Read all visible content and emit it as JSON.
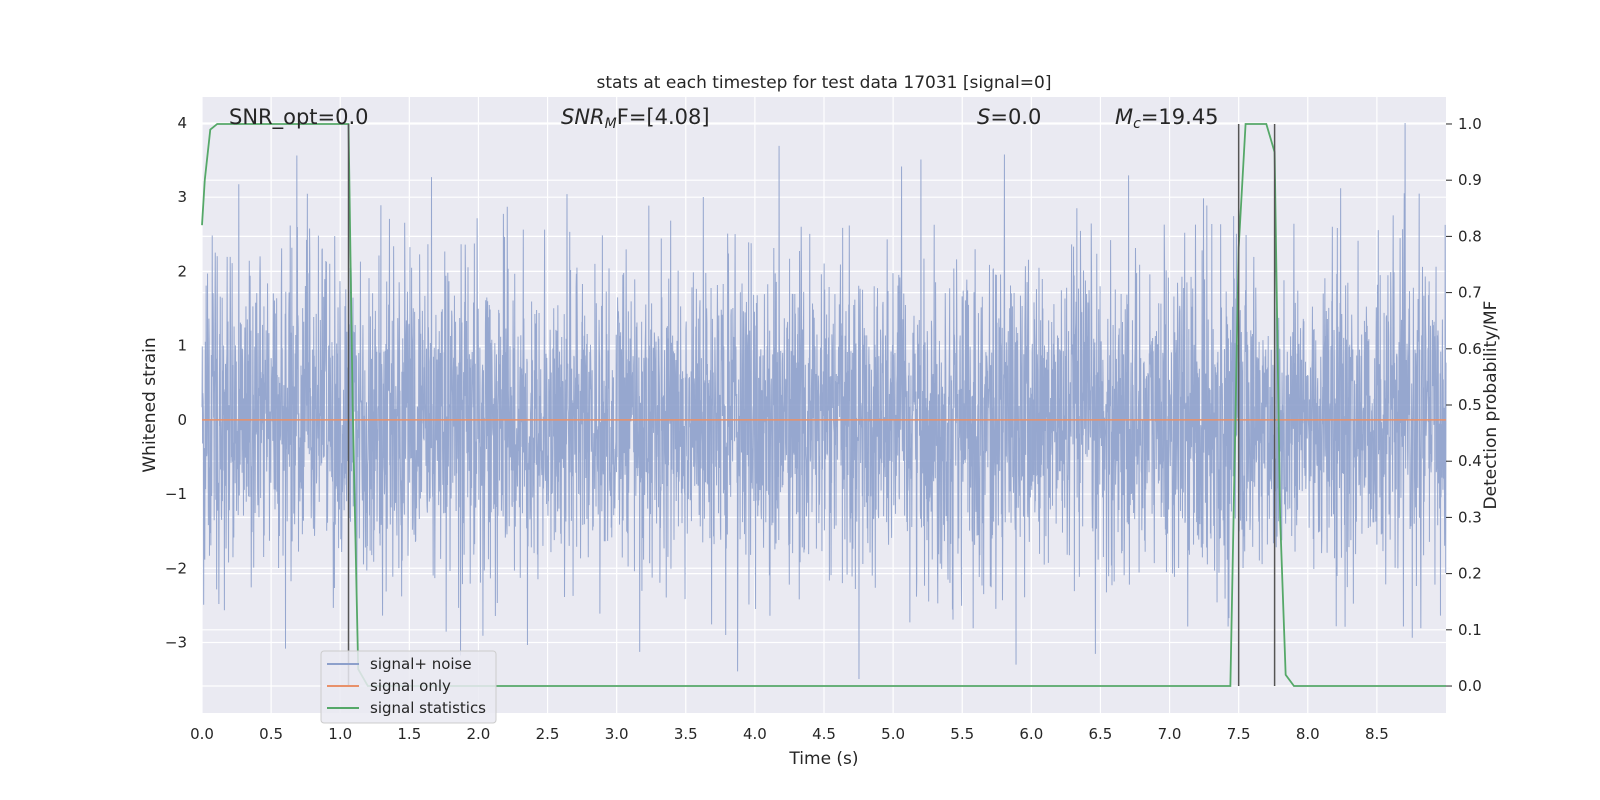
{
  "chart_data": {
    "type": "line",
    "title": "stats at each timestep for test data 17031 [signal=0]",
    "xlabel": "Time (s)",
    "ylabel_left": "Whitened strain",
    "ylabel_right": "Detection probability/MF",
    "xlim": [
      0.0,
      9.0
    ],
    "ylim_left": [
      -3.95,
      4.35
    ],
    "ylim_right": [
      -0.048,
      1.048
    ],
    "grid": true,
    "legend_position": "lower-left",
    "x_ticks": [
      "0.0",
      "0.5",
      "1.0",
      "1.5",
      "2.0",
      "2.5",
      "3.0",
      "3.5",
      "4.0",
      "4.5",
      "5.0",
      "5.5",
      "6.0",
      "6.5",
      "7.0",
      "7.5",
      "8.0",
      "8.5"
    ],
    "y_ticks_left": [
      "−3",
      "−2",
      "−1",
      "0",
      "1",
      "2",
      "3",
      "4"
    ],
    "y_ticks_right": [
      "0.0",
      "0.1",
      "0.2",
      "0.3",
      "0.4",
      "0.5",
      "0.6",
      "0.7",
      "0.8",
      "0.9",
      "1.0"
    ],
    "annotations": {
      "snr_opt": "SNR_opt=0.0",
      "snr_mf_main": "SNR",
      "snr_mf_sub": "M",
      "snr_mf_rest": "F=[4.08]",
      "s_main": "S",
      "s_rest": "=0.0",
      "mc_main": "M",
      "mc_sub": "c",
      "mc_rest": "=19.45"
    },
    "series": [
      {
        "name": "signal+ noise",
        "axis": "left",
        "color": "#8da0cb",
        "description_of_values": "whitened noise, approx. Gaussian between -3.6 and 4.0",
        "y_range_observed": [
          -3.6,
          4.0
        ]
      },
      {
        "name": "signal only",
        "axis": "left",
        "color": "#e8916a",
        "x": [
          0.0,
          9.0
        ],
        "y": [
          0.0,
          0.0
        ]
      },
      {
        "name": "signal statistics",
        "axis": "right",
        "color": "#55a868",
        "x": [
          0.0,
          0.02,
          0.06,
          0.11,
          0.5,
          1.0,
          1.06,
          1.09,
          1.13,
          1.2,
          7.0,
          7.44,
          7.5,
          7.55,
          7.6,
          7.7,
          7.76,
          7.8,
          7.84,
          7.9,
          9.0
        ],
        "y": [
          0.82,
          0.9,
          0.99,
          1.0,
          1.0,
          1.0,
          1.0,
          0.5,
          0.03,
          0.0,
          0.0,
          0.0,
          0.78,
          1.0,
          1.0,
          1.0,
          0.95,
          0.3,
          0.02,
          0.0,
          0.0
        ]
      }
    ],
    "vertical_markers": {
      "color": "#555555",
      "x": [
        1.06,
        7.5,
        7.76
      ]
    }
  }
}
